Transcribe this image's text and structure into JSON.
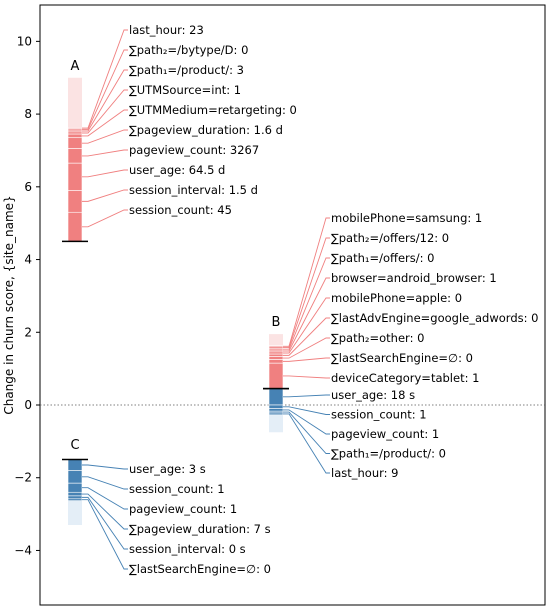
{
  "chart_data": {
    "type": "bar",
    "ylabel": "Change in churn score, {site_name}",
    "ylim": [
      -5.5,
      11
    ],
    "yticks": [
      -4,
      -2,
      0,
      2,
      4,
      6,
      8,
      10
    ],
    "zero_line": "dotted",
    "colors": {
      "positive": "#f08080",
      "negative": "#4682b4"
    },
    "columns": [
      {
        "label": "A",
        "start": 4.5,
        "top": 9.0,
        "direction": "positive",
        "features": [
          {
            "text": "last_hour: 23",
            "value": 0.03
          },
          {
            "text": "∑path₂=/bytype/D: 0",
            "value": 0.04
          },
          {
            "text": "∑path₁=/product/: 3",
            "value": 0.05
          },
          {
            "text": "∑UTMSource=int: 1",
            "value": 0.06
          },
          {
            "text": "∑UTMMedium=retargeting: 0",
            "value": 0.1
          },
          {
            "text": "∑pageview_duration: 1.6 d",
            "value": 0.3
          },
          {
            "text": "pageview_count: 3267",
            "value": 0.4
          },
          {
            "text": "user_age: 64.5 d",
            "value": 0.75
          },
          {
            "text": "session_interval: 1.5 d",
            "value": 0.6
          },
          {
            "text": "session_count: 45",
            "value": 0.8
          }
        ]
      },
      {
        "label": "B",
        "start": 0.45,
        "top": 1.95,
        "direction": "positive",
        "features": [
          {
            "text": "mobilePhone=samsung: 1",
            "value": 0.03
          },
          {
            "text": "∑path₂=/offers/12: 0",
            "value": 0.04
          },
          {
            "text": "∑path₁=/offers/: 0",
            "value": 0.05
          },
          {
            "text": "browser=android_browser: 1",
            "value": 0.05
          },
          {
            "text": "mobilePhone=apple: 0",
            "value": 0.06
          },
          {
            "text": "∑lastAdvEngine=google_adwords: 0",
            "value": 0.07
          },
          {
            "text": "∑path₂=other: 0",
            "value": 0.08
          },
          {
            "text": "∑lastSearchEngine=∅: 0",
            "value": 0.1
          },
          {
            "text": "deviceCategory=tablet: 1",
            "value": 0.7
          }
        ]
      },
      {
        "label": "B",
        "start": 0.45,
        "bottom": -0.75,
        "direction": "negative",
        "features": [
          {
            "text": "user_age: 18 s",
            "value": -0.45
          },
          {
            "text": "session_count: 1",
            "value": -0.1
          },
          {
            "text": "pageview_count: 1",
            "value": -0.07
          },
          {
            "text": "∑path₁=/product/: 0",
            "value": -0.05
          },
          {
            "text": "last_hour: 9",
            "value": -0.05
          }
        ]
      },
      {
        "label": "C",
        "start": -1.5,
        "bottom": -3.3,
        "direction": "negative",
        "features": [
          {
            "text": "user_age: 3 s",
            "value": -0.3
          },
          {
            "text": "session_count: 1",
            "value": -0.35
          },
          {
            "text": "pageview_count: 1",
            "value": -0.25
          },
          {
            "text": "∑pageview_duration: 7 s",
            "value": -0.1
          },
          {
            "text": "session_interval: 0 s",
            "value": -0.08
          },
          {
            "text": "∑lastSearchEngine=∅: 0",
            "value": -0.05
          }
        ]
      }
    ],
    "column_labels": [
      {
        "text": "A",
        "column": 0
      },
      {
        "text": "B",
        "column": 1
      },
      {
        "text": "C",
        "column": 3
      }
    ]
  }
}
